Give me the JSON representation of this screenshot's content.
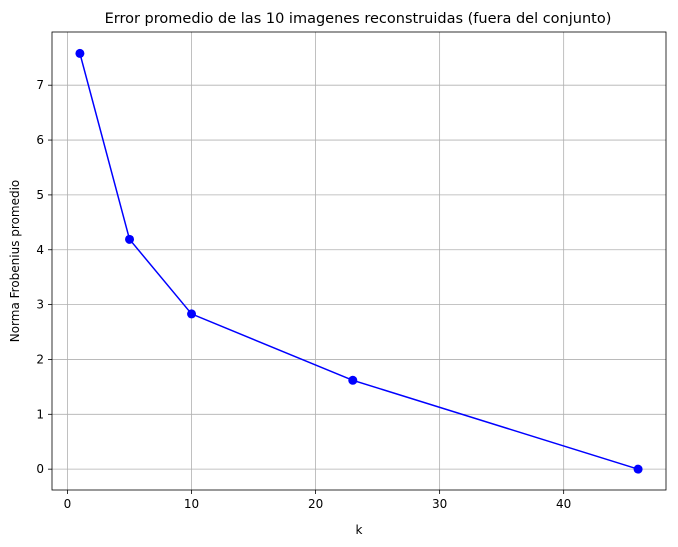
{
  "chart_data": {
    "type": "line",
    "title": "Error promedio de las 10 imagenes reconstruidas (fuera del conjunto)",
    "xlabel": "k",
    "ylabel": "Norma Frobenius promedio",
    "x": [
      1,
      5,
      10,
      23,
      46
    ],
    "y": [
      7.58,
      4.19,
      2.83,
      1.62,
      0.0
    ],
    "xlim": [
      -1.25,
      48.25
    ],
    "ylim": [
      -0.38,
      7.97
    ],
    "xticks": [
      0,
      10,
      20,
      30,
      40
    ],
    "yticks": [
      0,
      1,
      2,
      3,
      4,
      5,
      6,
      7
    ],
    "grid": true,
    "line_color": "#0000ff",
    "marker": "circle"
  }
}
